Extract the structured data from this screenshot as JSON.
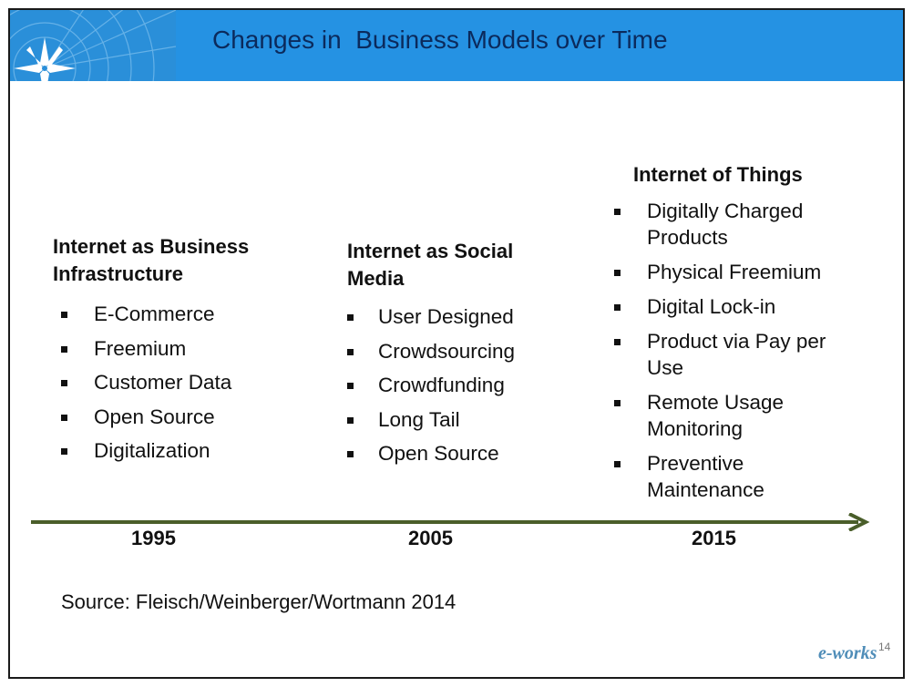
{
  "slide": {
    "title": "Changes in  Business Models over Time",
    "page_number": "14",
    "watermark": "e-works",
    "colors": {
      "header": "#2592e3",
      "title": "#0b2a5c",
      "arrow": "#4a5e2a"
    }
  },
  "columns": [
    {
      "heading": "Internet as Business Infrastructure",
      "heading_lines": [
        "Internet as Business",
        "Infrastructure"
      ],
      "items": [
        [
          "E-Commerce"
        ],
        [
          "Freemium"
        ],
        [
          "Customer Data"
        ],
        [
          "Open Source"
        ],
        [
          "Digitalization"
        ]
      ]
    },
    {
      "heading": "Internet as Social Media",
      "heading_lines": [
        "Internet as Social",
        "Media"
      ],
      "items": [
        [
          "User Designed"
        ],
        [
          "Crowdsourcing"
        ],
        [
          "Crowdfunding"
        ],
        [
          "Long Tail"
        ],
        [
          "Open Source"
        ]
      ]
    },
    {
      "heading": "Internet of Things",
      "heading_lines": [
        "Internet of Things"
      ],
      "items": [
        [
          "Digitally Charged",
          "Products"
        ],
        [
          "Physical Freemium"
        ],
        [
          "Digital Lock-in"
        ],
        [
          "Product via Pay per",
          "Use"
        ],
        [
          "Remote Usage",
          "Monitoring"
        ],
        [
          "Preventive",
          "Maintenance"
        ]
      ]
    }
  ],
  "timeline": {
    "years": [
      "1995",
      "2005",
      "2015"
    ]
  },
  "source": "Source: Fleisch/Weinberger/Wortmann 2014"
}
